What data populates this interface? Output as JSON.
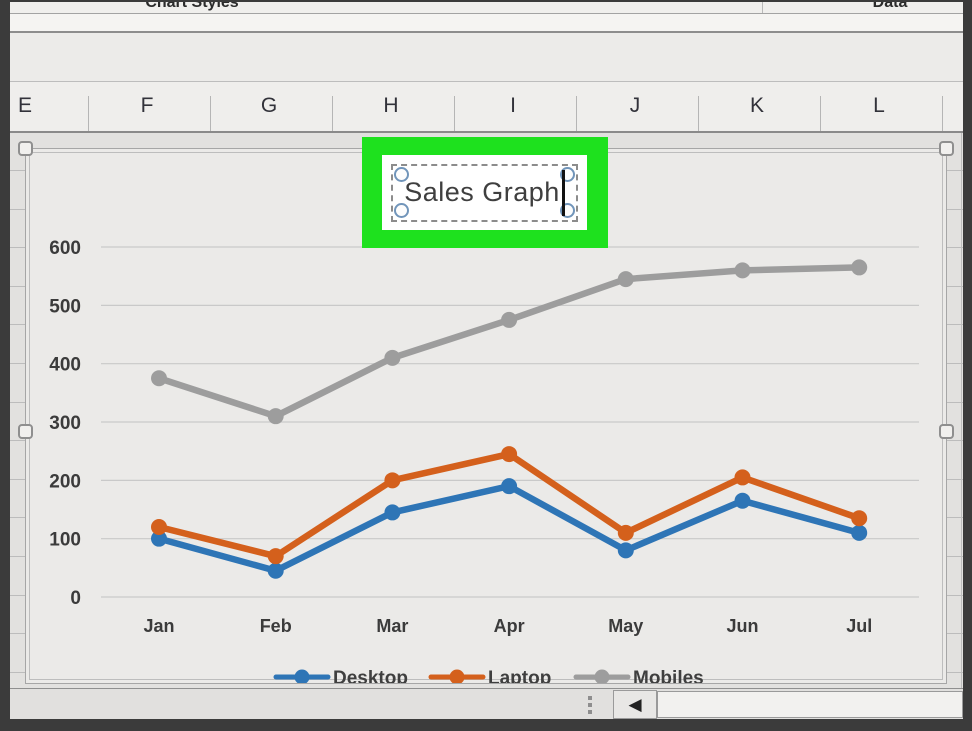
{
  "ribbon": {
    "chart_styles_label": "Chart Styles",
    "data_label": "Data"
  },
  "column_headers": [
    "E",
    "F",
    "G",
    "H",
    "I",
    "J",
    "K",
    "L"
  ],
  "title_editor": {
    "text": "Sales Graph",
    "highlight_color": "#1EE11E"
  },
  "chart_data": {
    "type": "line",
    "title": "Sales Graph",
    "categories": [
      "Jan",
      "Feb",
      "Mar",
      "Apr",
      "May",
      "Jun",
      "Jul"
    ],
    "series": [
      {
        "name": "Desktop",
        "color": "#2E75B6",
        "values": [
          100,
          45,
          145,
          190,
          80,
          165,
          110
        ]
      },
      {
        "name": "Laptop",
        "color": "#D4601C",
        "values": [
          120,
          70,
          200,
          245,
          110,
          205,
          135
        ]
      },
      {
        "name": "Mobiles",
        "color": "#9D9D9D",
        "values": [
          375,
          310,
          410,
          475,
          545,
          560,
          565
        ]
      }
    ],
    "xlabel": "",
    "ylabel": "",
    "ylim": [
      0,
      600
    ],
    "yticks": [
      0,
      100,
      200,
      300,
      400,
      500,
      600
    ],
    "grid": true,
    "legend_position": "bottom",
    "tick_color": "#3b3b3b",
    "gridline_color": "#c9c9c9"
  },
  "scrollbar": {
    "left_arrow_glyph": "◀"
  }
}
